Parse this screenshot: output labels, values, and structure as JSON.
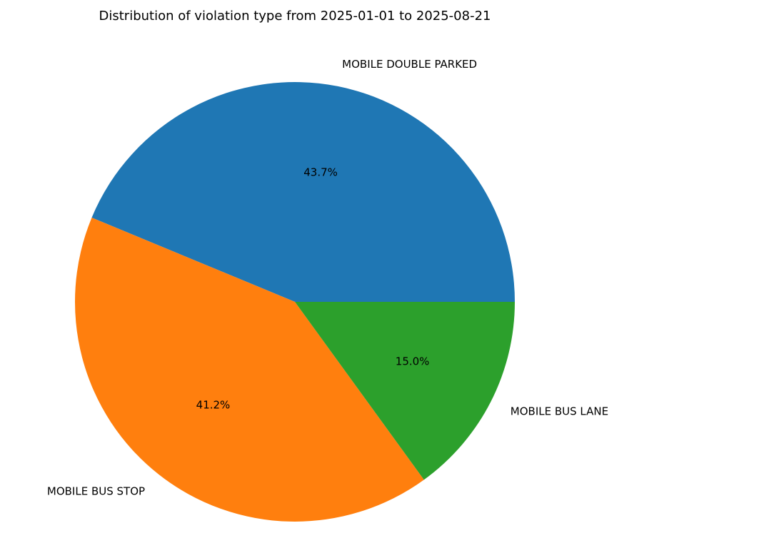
{
  "chart_data": {
    "type": "pie",
    "title": "Distribution of violation type from 2025-01-01 to 2025-08-21",
    "slices": [
      {
        "label": "MOBILE DOUBLE PARKED",
        "value": 43.7,
        "pct_label": "43.7%",
        "color": "#1f77b4"
      },
      {
        "label": "MOBILE BUS STOP",
        "value": 41.2,
        "pct_label": "41.2%",
        "color": "#ff7f0e"
      },
      {
        "label": "MOBILE BUS LANE",
        "value": 15.0,
        "pct_label": "15.0%",
        "color": "#2ca02c"
      }
    ],
    "start_angle_deg": 0,
    "direction": "counterclockwise",
    "legend": "none"
  }
}
